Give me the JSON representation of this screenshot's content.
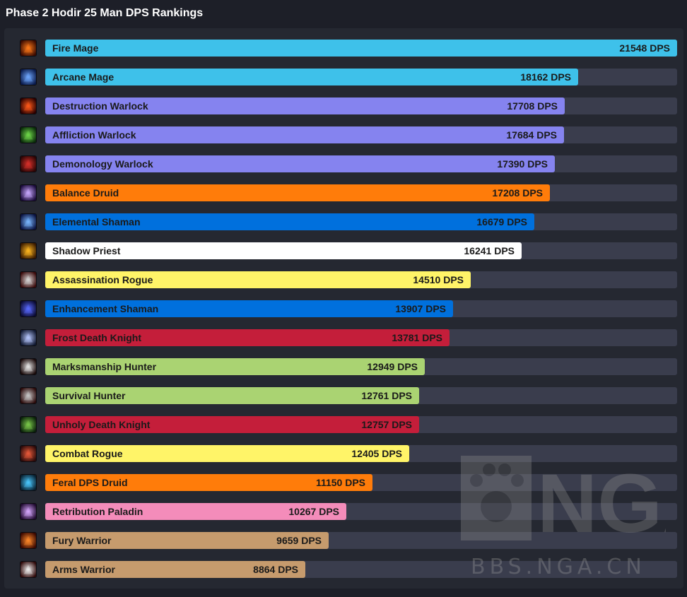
{
  "title": "Phase 2 Hodir 25 Man DPS Rankings",
  "watermark": {
    "logo_text": "NGA",
    "url": "BBS.NGA.CN"
  },
  "chart_data": {
    "type": "bar",
    "orientation": "horizontal",
    "title": "Phase 2 Hodir 25 Man DPS Rankings",
    "unit": "DPS",
    "xlim": [
      0,
      21548
    ],
    "bars": [
      {
        "name": "Fire Mage",
        "value": 21548,
        "color": "#3ec1ea",
        "text_color": "#1a1a1a",
        "icon": "fire-icon"
      },
      {
        "name": "Arcane Mage",
        "value": 18162,
        "color": "#3ec1ea",
        "text_color": "#1a1a1a",
        "icon": "arcane-icon"
      },
      {
        "name": "Destruction Warlock",
        "value": 17708,
        "color": "#8583ef",
        "text_color": "#1a1a1a",
        "icon": "fire-claw-icon"
      },
      {
        "name": "Affliction Warlock",
        "value": 17684,
        "color": "#8583ef",
        "text_color": "#1a1a1a",
        "icon": "skull-green-icon"
      },
      {
        "name": "Demonology Warlock",
        "value": 17390,
        "color": "#8583ef",
        "text_color": "#1a1a1a",
        "icon": "demon-icon"
      },
      {
        "name": "Balance Druid",
        "value": 17208,
        "color": "#ff7c0a",
        "text_color": "#1a1a1a",
        "icon": "starfall-icon"
      },
      {
        "name": "Elemental Shaman",
        "value": 16679,
        "color": "#0070dd",
        "text_color": "#1a1a1a",
        "icon": "lightning-icon"
      },
      {
        "name": "Shadow Priest",
        "value": 16241,
        "color": "#ffffff",
        "text_color": "#1a1a1a",
        "icon": "shadow-skull-icon"
      },
      {
        "name": "Assassination Rogue",
        "value": 14510,
        "color": "#fff468",
        "text_color": "#1a1a1a",
        "icon": "dagger-icon"
      },
      {
        "name": "Enhancement Shaman",
        "value": 13907,
        "color": "#0070dd",
        "text_color": "#1a1a1a",
        "icon": "shield-icon"
      },
      {
        "name": "Frost Death Knight",
        "value": 13781,
        "color": "#c41e3a",
        "text_color": "#1a1a1a",
        "icon": "frost-icon"
      },
      {
        "name": "Marksmanship Hunter",
        "value": 12949,
        "color": "#aad372",
        "text_color": "#1a1a1a",
        "icon": "arrow-icon"
      },
      {
        "name": "Survival Hunter",
        "value": 12761,
        "color": "#aad372",
        "text_color": "#1a1a1a",
        "icon": "axe-icon"
      },
      {
        "name": "Unholy Death Knight",
        "value": 12757,
        "color": "#c41e3a",
        "text_color": "#1a1a1a",
        "icon": "plague-icon"
      },
      {
        "name": "Combat Rogue",
        "value": 12405,
        "color": "#fff468",
        "text_color": "#1a1a1a",
        "icon": "blade-icon"
      },
      {
        "name": "Feral DPS Druid",
        "value": 11150,
        "color": "#ff7c0a",
        "text_color": "#1a1a1a",
        "icon": "cat-icon"
      },
      {
        "name": "Retribution Paladin",
        "value": 10267,
        "color": "#f48cba",
        "text_color": "#1a1a1a",
        "icon": "holy-icon"
      },
      {
        "name": "Fury Warrior",
        "value": 9659,
        "color": "#c69b6d",
        "text_color": "#1a1a1a",
        "icon": "rage-icon"
      },
      {
        "name": "Arms Warrior",
        "value": 8864,
        "color": "#c69b6d",
        "text_color": "#1a1a1a",
        "icon": "sword-icon"
      }
    ]
  }
}
